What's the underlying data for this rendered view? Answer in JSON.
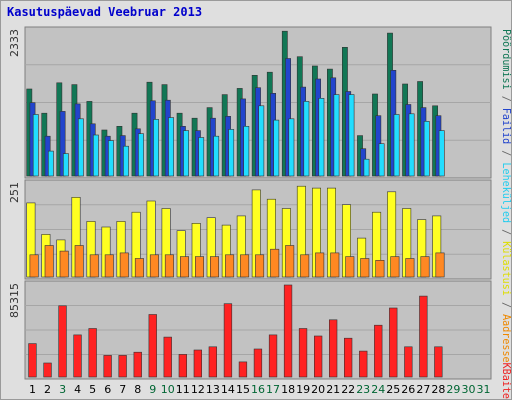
{
  "chart_data": {
    "type": "bar",
    "title": "Kasutuspäevad Veebruar 2013",
    "categories": [
      "1",
      "2",
      "3",
      "4",
      "5",
      "6",
      "7",
      "8",
      "9",
      "10",
      "11",
      "12",
      "13",
      "14",
      "15",
      "16",
      "17",
      "18",
      "19",
      "20",
      "21",
      "22",
      "23",
      "24",
      "25",
      "26",
      "27",
      "28",
      "29",
      "30",
      "31"
    ],
    "category_colors": [
      "#000000",
      "#000000",
      "#006633",
      "#000000",
      "#000000",
      "#000000",
      "#000000",
      "#000000",
      "#006633",
      "#006633",
      "#000000",
      "#000000",
      "#000000",
      "#000000",
      "#000000",
      "#006633",
      "#006633",
      "#000000",
      "#000000",
      "#000000",
      "#000000",
      "#000000",
      "#006633",
      "#006633",
      "#000000",
      "#000000",
      "#000000",
      "#000000",
      "#006633",
      "#006633",
      "#006633"
    ],
    "panels": [
      {
        "id": "top",
        "ymax_label": "2333",
        "ymax": 2333,
        "series": [
          {
            "name": "Pöördumisi",
            "color": "#117755",
            "values": [
              1400,
              1010,
              1500,
              1470,
              1200,
              740,
              800,
              1010,
              1510,
              1470,
              1010,
              930,
              1100,
              1310,
              1410,
              1620,
              1670,
              2330,
              1920,
              1770,
              1720,
              2070,
              650,
              1320,
              2300,
              1480,
              1520,
              1130
            ]
          },
          {
            "name": "Failid",
            "color": "#2244cc",
            "values": [
              1180,
              640,
              1040,
              1160,
              840,
              640,
              650,
              760,
              1210,
              1220,
              800,
              730,
              930,
              960,
              1240,
              1420,
              1330,
              1890,
              1430,
              1560,
              1580,
              1360,
              440,
              970,
              1700,
              1150,
              1100,
              970
            ]
          },
          {
            "name": "Leheküljed",
            "color": "#22ddff",
            "values": [
              990,
              400,
              360,
              920,
              660,
              570,
              480,
              680,
              910,
              940,
              730,
              620,
              640,
              750,
              800,
              1130,
              900,
              920,
              1200,
              1250,
              1310,
              1310,
              270,
              520,
              990,
              1000,
              880,
              730
            ]
          }
        ]
      },
      {
        "id": "middle",
        "ymax_label": "251",
        "ymax": 251,
        "series": [
          {
            "name": "Külastusi",
            "color": "#ffff22",
            "values": [
              200,
              115,
              100,
              215,
              150,
              135,
              150,
              175,
              205,
              185,
              125,
              145,
              160,
              140,
              165,
              235,
              210,
              185,
              245,
              240,
              240,
              195,
              105,
              175,
              230,
              185,
              155,
              165
            ]
          },
          {
            "name": "Aadresse",
            "color": "#ff8822",
            "values": [
              60,
              85,
              70,
              85,
              60,
              60,
              65,
              50,
              60,
              60,
              55,
              55,
              55,
              60,
              60,
              60,
              75,
              85,
              60,
              65,
              65,
              55,
              50,
              45,
              55,
              50,
              55,
              65
            ]
          }
        ]
      },
      {
        "id": "bottom",
        "ymax_label": "85315",
        "ymax": 85315,
        "series": [
          {
            "name": "KBaite",
            "color": "#ff2222",
            "values": [
              31000,
              13000,
              66000,
              39000,
              45000,
              20000,
              20000,
              23000,
              58000,
              37000,
              21000,
              25000,
              28000,
              68000,
              14000,
              26000,
              39000,
              85315,
              45000,
              38000,
              53000,
              36000,
              24000,
              48000,
              64000,
              28000,
              75000,
              28000
            ]
          }
        ]
      }
    ],
    "right_legend": [
      {
        "panel": "top",
        "text": "Pöördumisi",
        "color": "#117755"
      },
      {
        "panel": "top",
        "text": " / ",
        "color": "#666666"
      },
      {
        "panel": "top",
        "text": "Failid",
        "color": "#2244cc"
      },
      {
        "panel": "top",
        "text": " / ",
        "color": "#666666"
      },
      {
        "panel": "top",
        "text": "Leheküljed",
        "color": "#22ccee"
      },
      {
        "panel": "middle",
        "text": " / ",
        "color": "#666666"
      },
      {
        "panel": "middle",
        "text": "Külastusi",
        "color": "#dddd00"
      },
      {
        "panel": "middle",
        "text": " / ",
        "color": "#666666"
      },
      {
        "panel": "middle",
        "text": "Aadresse",
        "color": "#ee8800"
      },
      {
        "panel": "bottom",
        "text": "KBaite",
        "color": "#ee2222"
      }
    ]
  }
}
